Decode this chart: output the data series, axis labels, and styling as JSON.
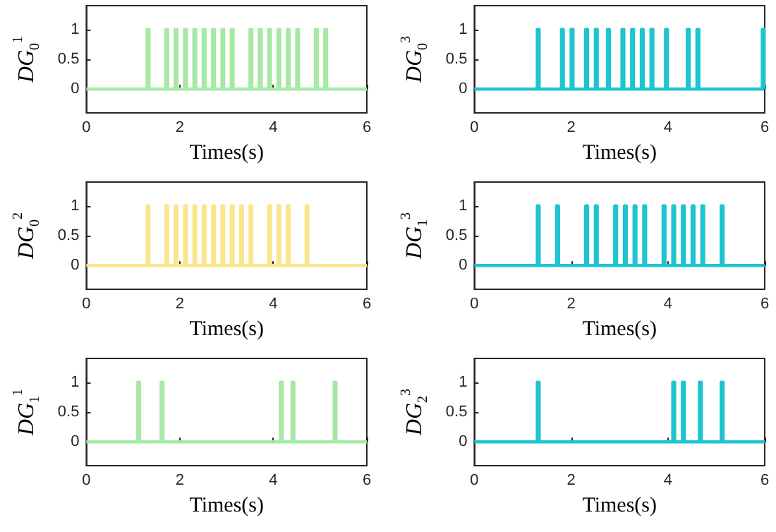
{
  "chart_data": [
    {
      "type": "step",
      "ylabel": "DG$_{0}$$^{1}$",
      "xlabel": "Times(s)",
      "xlim": [
        0,
        6
      ],
      "xticks": [
        0,
        2,
        4,
        6
      ],
      "ylim": [
        -0.4,
        1.4
      ],
      "yticks": [
        0,
        0.5,
        1
      ],
      "series": [
        {
          "color": "#a6e8a4",
          "x": [
            0,
            1.3,
            1.34,
            1.7,
            1.74,
            1.9,
            1.94,
            2.1,
            2.14,
            2.3,
            2.34,
            2.5,
            2.54,
            2.7,
            2.74,
            2.9,
            2.94,
            3.1,
            3.14,
            3.5,
            3.54,
            3.7,
            3.74,
            3.9,
            3.94,
            4.1,
            4.14,
            4.3,
            4.34,
            4.5,
            4.54,
            4.9,
            4.94,
            5.1,
            5.14,
            6
          ],
          "values": [
            0,
            1,
            0,
            1,
            0,
            1,
            0,
            1,
            0,
            1,
            0,
            1,
            0,
            1,
            0,
            1,
            0,
            1,
            0,
            1,
            0,
            1,
            0,
            1,
            0,
            1,
            0,
            1,
            0,
            1,
            0,
            1,
            0,
            1,
            0,
            0
          ]
        }
      ]
    },
    {
      "type": "step",
      "ylabel": "DG$_{0}$$^{3}$",
      "xlabel": "Times(s)",
      "xlim": [
        0,
        6
      ],
      "xticks": [
        0,
        2,
        4,
        6
      ],
      "ylim": [
        -0.4,
        1.4
      ],
      "yticks": [
        0,
        0.5,
        1
      ],
      "series": [
        {
          "color": "#1ec4cf",
          "x": [
            0,
            1.3,
            1.34,
            1.8,
            1.84,
            2,
            2.04,
            2.3,
            2.34,
            2.5,
            2.54,
            2.75,
            2.79,
            3.05,
            3.09,
            3.25,
            3.29,
            3.45,
            3.49,
            3.65,
            3.69,
            3.95,
            3.99,
            4.4,
            4.44,
            4.6,
            4.64,
            5.95,
            5.99,
            6
          ],
          "values": [
            0,
            1,
            0,
            1,
            0,
            1,
            0,
            1,
            0,
            1,
            0,
            1,
            0,
            1,
            0,
            1,
            0,
            1,
            0,
            1,
            0,
            1,
            0,
            1,
            0,
            1,
            0,
            1,
            0,
            0
          ]
        }
      ]
    },
    {
      "type": "step",
      "ylabel": "DG$_{0}$$^{2}$",
      "xlabel": "Times(s)",
      "xlim": [
        0,
        6
      ],
      "xticks": [
        0,
        2,
        4,
        6
      ],
      "ylim": [
        -0.4,
        1.4
      ],
      "yticks": [
        0,
        0.5,
        1
      ],
      "series": [
        {
          "color": "#fbe58c",
          "x": [
            0,
            1.3,
            1.34,
            1.7,
            1.74,
            1.9,
            1.94,
            2.1,
            2.14,
            2.3,
            2.34,
            2.5,
            2.54,
            2.7,
            2.74,
            2.9,
            2.94,
            3.1,
            3.14,
            3.3,
            3.34,
            3.5,
            3.54,
            3.9,
            3.94,
            4.1,
            4.14,
            4.3,
            4.34,
            4.7,
            4.74,
            6
          ],
          "values": [
            0,
            1,
            0,
            1,
            0,
            1,
            0,
            1,
            0,
            1,
            0,
            1,
            0,
            1,
            0,
            1,
            0,
            1,
            0,
            1,
            0,
            1,
            0,
            1,
            0,
            1,
            0,
            1,
            0,
            1,
            0,
            0
          ]
        }
      ]
    },
    {
      "type": "step",
      "ylabel": "DG$_{1}$$^{3}$",
      "xlabel": "Times(s)",
      "xlim": [
        0,
        6
      ],
      "xticks": [
        0,
        2,
        4,
        6
      ],
      "ylim": [
        -0.4,
        1.4
      ],
      "yticks": [
        0,
        0.5,
        1
      ],
      "series": [
        {
          "color": "#1ec4cf",
          "x": [
            0,
            1.3,
            1.34,
            1.7,
            1.74,
            2.3,
            2.34,
            2.5,
            2.54,
            2.9,
            2.94,
            3.1,
            3.14,
            3.3,
            3.34,
            3.5,
            3.54,
            3.9,
            3.94,
            4.1,
            4.14,
            4.3,
            4.34,
            4.5,
            4.54,
            4.7,
            4.74,
            5.1,
            5.14,
            6
          ],
          "values": [
            0,
            1,
            0,
            1,
            0,
            1,
            0,
            1,
            0,
            1,
            0,
            1,
            0,
            1,
            0,
            1,
            0,
            1,
            0,
            1,
            0,
            1,
            0,
            1,
            0,
            1,
            0,
            1,
            0,
            0
          ]
        }
      ]
    },
    {
      "type": "step",
      "ylabel": "DG$_{1}$$^{1}$",
      "xlabel": "Times(s)",
      "xlim": [
        0,
        6
      ],
      "xticks": [
        0,
        2,
        4,
        6
      ],
      "ylim": [
        -0.4,
        1.4
      ],
      "yticks": [
        0,
        0.5,
        1
      ],
      "series": [
        {
          "color": "#a6e8a4",
          "x": [
            0,
            1.1,
            1.14,
            1.6,
            1.64,
            4.15,
            4.19,
            4.4,
            4.44,
            5.3,
            5.34,
            6
          ],
          "values": [
            0,
            1,
            0,
            1,
            0,
            1,
            0,
            1,
            0,
            1,
            0,
            0
          ]
        }
      ]
    },
    {
      "type": "step",
      "ylabel": "DG$_{2}$$^{3}$",
      "xlabel": "Times(s)",
      "xlim": [
        0,
        6
      ],
      "xticks": [
        0,
        2,
        4,
        6
      ],
      "ylim": [
        -0.4,
        1.4
      ],
      "yticks": [
        0,
        0.5,
        1
      ],
      "series": [
        {
          "color": "#1ec4cf",
          "x": [
            0,
            1.3,
            1.34,
            4.1,
            4.14,
            4.3,
            4.34,
            4.65,
            4.69,
            5.1,
            5.14,
            6
          ],
          "values": [
            0,
            1,
            0,
            1,
            0,
            1,
            0,
            1,
            0,
            1,
            0,
            0
          ]
        }
      ]
    }
  ]
}
